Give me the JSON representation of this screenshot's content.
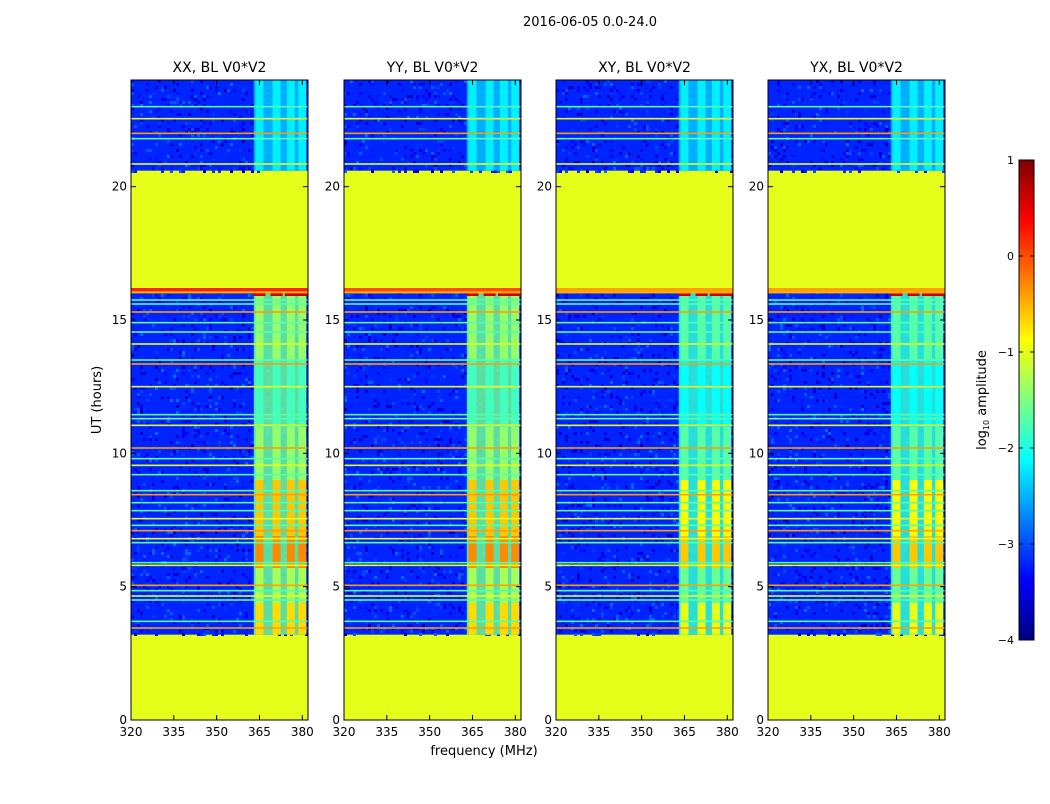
{
  "chart_data": {
    "type": "heatmap",
    "suptitle": "2016-06-05 0.0-24.0",
    "xlabel": "frequency (MHz)",
    "ylabel": "UT (hours)",
    "xlim": [
      320,
      382
    ],
    "ylim": [
      0,
      24
    ],
    "xticks": [
      320,
      335,
      350,
      365,
      380
    ],
    "yticks": [
      0,
      5,
      10,
      15,
      20
    ],
    "panels": [
      {
        "title": "XX, BL V0*V2",
        "pol": "XX"
      },
      {
        "title": "YY, BL V0*V2",
        "pol": "YY"
      },
      {
        "title": "XY, BL V0*V2",
        "pol": "XY"
      },
      {
        "title": "YX, BL V0*V2",
        "pol": "YX"
      }
    ],
    "data_gaps_hours": [
      [
        0,
        3.2
      ],
      [
        16.2,
        20.6
      ]
    ],
    "data_segments_hours": [
      [
        3.2,
        16.2
      ],
      [
        20.6,
        24.0
      ]
    ],
    "noise_floor_log10": -3.2,
    "rfi_band_mhz": [
      363,
      380
    ],
    "rfi_channels_mhz": [
      365,
      371,
      376,
      380
    ],
    "high_amplitude_hours": [
      16.0,
      16.2
    ],
    "colorbar": {
      "label": "log",
      "label_sub": "10",
      "label_suffix": " amplitude",
      "min": -4,
      "max": 1,
      "ticks": [
        1,
        0,
        -1,
        -2,
        -3,
        -4
      ],
      "colormap": "jet",
      "colors": [
        "#00007f",
        "#0000ff",
        "#007fff",
        "#00ffff",
        "#7fff7f",
        "#ffff00",
        "#ff7f00",
        "#ff0000",
        "#7f0000"
      ]
    }
  }
}
